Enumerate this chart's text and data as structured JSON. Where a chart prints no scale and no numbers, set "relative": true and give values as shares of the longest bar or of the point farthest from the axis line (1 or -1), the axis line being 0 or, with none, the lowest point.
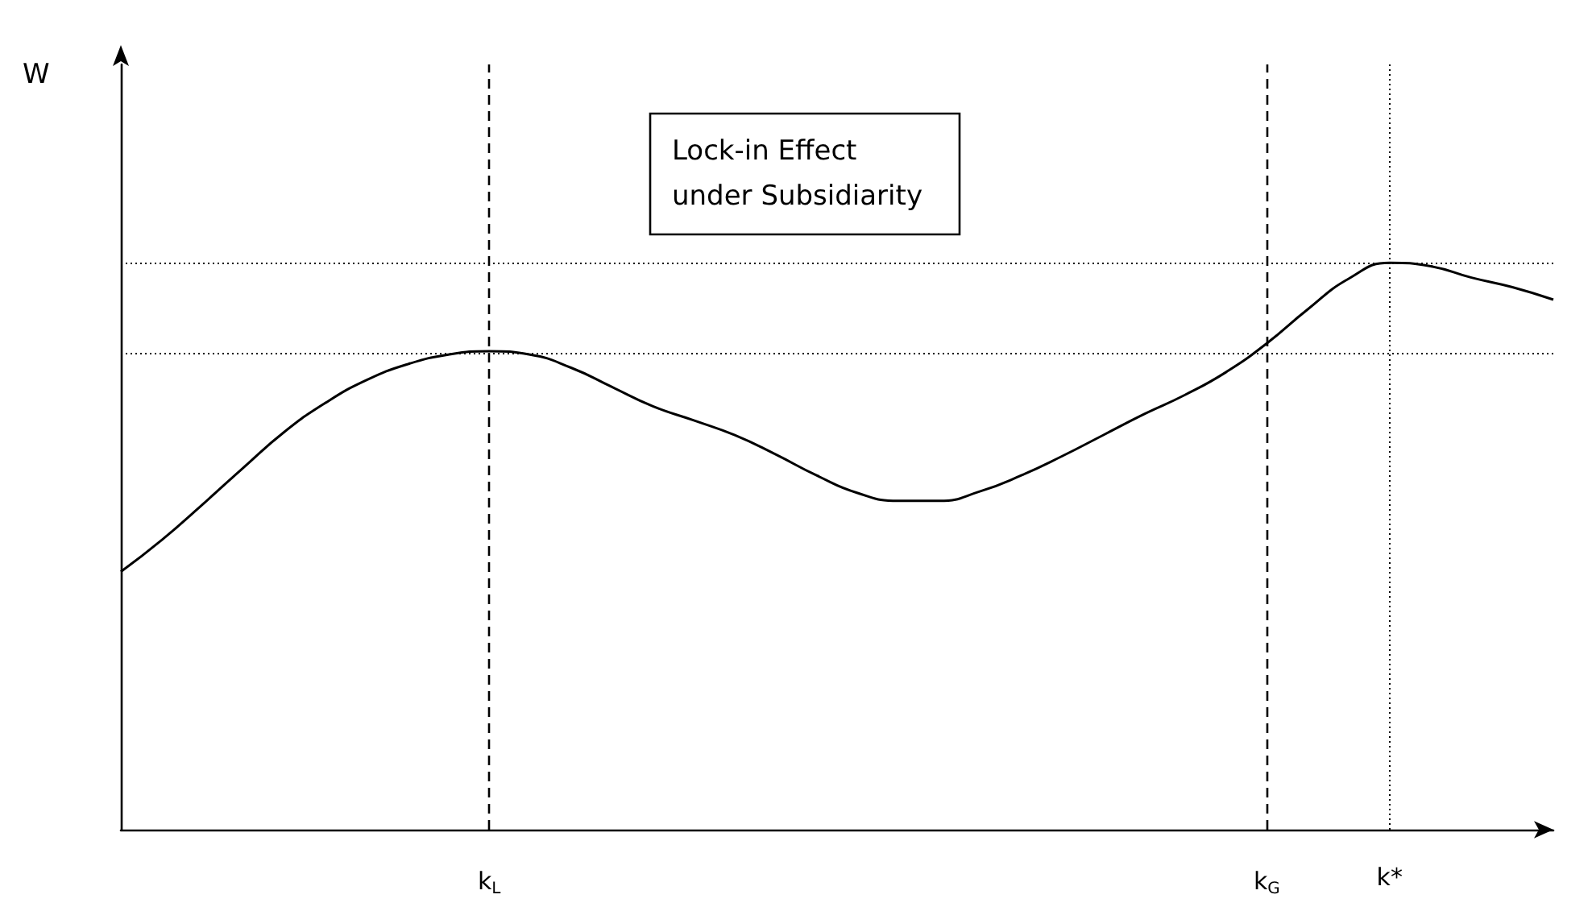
{
  "chart_data": {
    "type": "line",
    "relative": true,
    "title": "Lock-in Effect under Subsidiarity",
    "annotations": [
      "W"
    ],
    "categories": [
      null,
      null,
      null,
      null,
      null,
      null,
      null,
      null,
      null,
      "k$_{L}$",
      null,
      null,
      null,
      null,
      null,
      null,
      null,
      null,
      null,
      null,
      null,
      null,
      null,
      null,
      null,
      null,
      null,
      null,
      "k$_{G}$",
      null,
      null,
      "k*",
      null,
      null,
      null,
      null
    ],
    "series": [
      {
        "color": "#000000",
        "values": [
          0.455,
          0.511,
          0.574,
          0.639,
          0.702,
          0.753,
          0.793,
          0.821,
          0.838,
          0.844,
          0.838,
          0.815,
          0.781,
          0.747,
          0.722,
          0.696,
          0.662,
          0.625,
          0.594,
          0.58,
          0.58,
          0.597,
          0.625,
          0.659,
          0.696,
          0.733,
          0.767,
          0.807,
          0.858,
          0.918,
          0.972,
          1,
          0.994,
          0.974,
          0.957,
          0.935
        ]
      }
    ],
    "ref_lines": [
      {
        "axis": "x",
        "value": "k$_{L}$",
        "line_style": "dashed",
        "color": "#000000"
      },
      {
        "axis": "x",
        "value": "k$_{G}$",
        "line_style": "dashed",
        "color": "#000000"
      },
      {
        "axis": "x",
        "value": "k*",
        "line_style": "dotted",
        "color": "#000000"
      },
      {
        "axis": "y",
        "value": 0.844,
        "line_style": "dotted",
        "color": "#000000"
      },
      {
        "axis": "y",
        "value": 1,
        "line_style": "dotted",
        "color": "#000000"
      }
    ],
    "marker": "none",
    "line_style": "solid"
  }
}
